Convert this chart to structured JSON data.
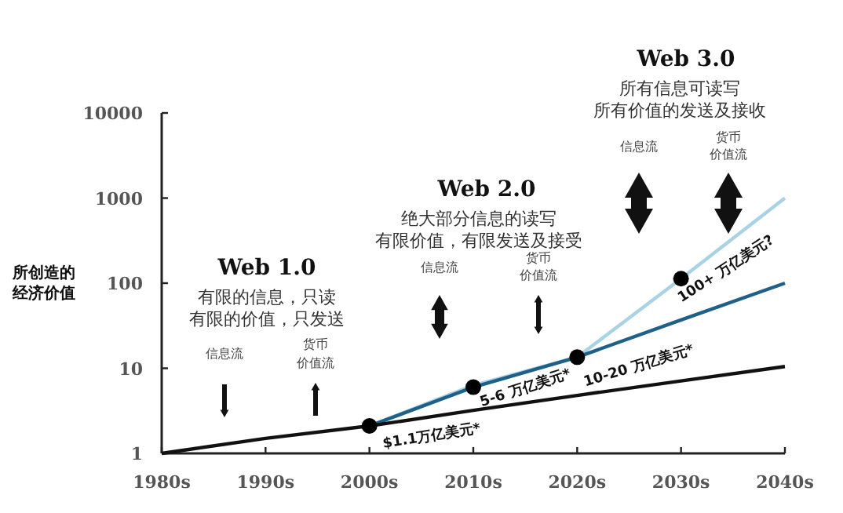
{
  "chart_data": {
    "type": "line",
    "ylabel": "所创造的经济价值",
    "categories": [
      "1980s",
      "1990s",
      "2000s",
      "2010s",
      "2020s",
      "2030s",
      "2040s"
    ],
    "log": true,
    "ylim": [
      1,
      10000
    ],
    "yticks": [
      1,
      10,
      100,
      1000,
      10000
    ],
    "grid": false,
    "marker": "none",
    "line_style": "solid",
    "series": [
      {
        "color": "#a9d3e4",
        "values": [
          null,
          null,
          2.1,
          6.3,
          13.5,
          113,
          1000
        ]
      },
      {
        "color": "#1f6088",
        "values": [
          null,
          null,
          2.1,
          6,
          13.5,
          37,
          100
        ]
      },
      {
        "color": "#111111",
        "values": [
          1,
          1.5,
          2.1,
          3.2,
          4.8,
          7.1,
          10.5
        ]
      },
      {
        "type": "scatter",
        "marker": "circle",
        "color": "#000000",
        "x": [
          "2000s",
          "2010s",
          "2020s",
          "2030s"
        ],
        "values": [
          2.1,
          6,
          13.5,
          113
        ]
      }
    ],
    "annotations": [
      "Web 1.0",
      "有限的信息，只读",
      "有限的价值，只发送",
      "信息流",
      "货币",
      "价值流",
      "Web 2.0",
      "绝大部分信息的读写",
      "有限价值，有限发送及接受",
      "信息流",
      "货币",
      "价值流",
      "Web 3.0",
      "所有信息可读写",
      "所有价值的发送及接收",
      "信息流",
      "货币",
      "价值流",
      {
        "text": "$1.1万亿美元*",
        "x": "2000s",
        "y": 2.1
      },
      {
        "text": "5-6 万亿美元*",
        "x": "2010s",
        "y": 6
      },
      {
        "text": "10-20 万亿美元*",
        "x": "2020s",
        "y": 13.5
      },
      {
        "text": "100+ 万亿美元?",
        "x": "2030s",
        "y": 113
      }
    ]
  }
}
